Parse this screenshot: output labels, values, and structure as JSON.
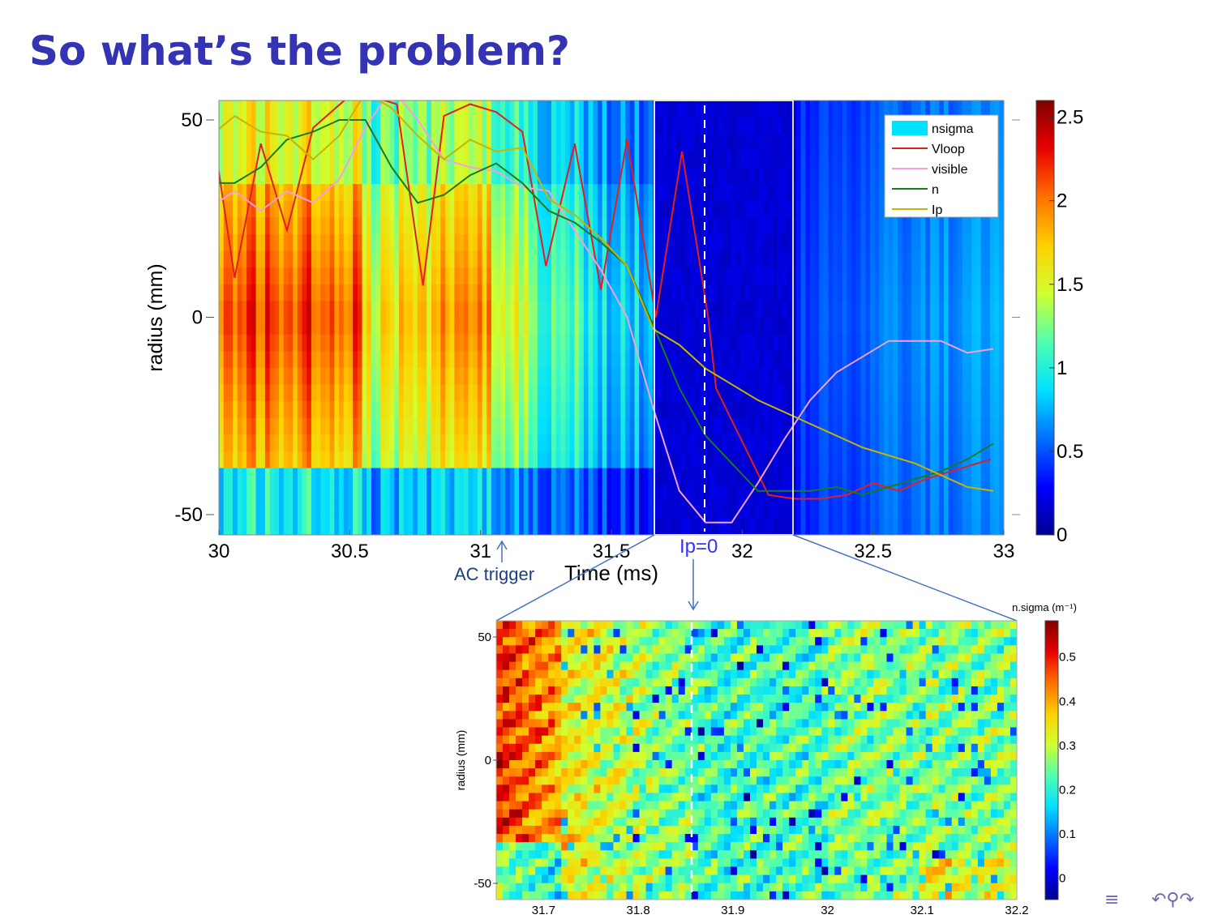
{
  "slide": {
    "title": "So what’s the problem?",
    "nav_icons": [
      "section-nav-icon",
      "undo-redo-search-icon"
    ]
  },
  "annotations": {
    "ac_trigger": "AC trigger",
    "ip_zero": "Ip=0"
  },
  "colormap": [
    "#00008f",
    "#0000ff",
    "#0070ff",
    "#00e0ff",
    "#50ffb0",
    "#d0ff30",
    "#ffd000",
    "#ff7000",
    "#e80000",
    "#800000"
  ],
  "chart_data": [
    {
      "type": "heatmap",
      "title": "",
      "xlabel": "Time (ms)",
      "ylabel": "radius (mm)",
      "xlim": [
        30,
        33
      ],
      "ylim": [
        -55,
        55
      ],
      "xticks": [
        "30",
        "30.5",
        "31",
        "31.5",
        "32",
        "32.5",
        "33"
      ],
      "yticks": [
        "50",
        "0",
        "-50"
      ],
      "colorbar": {
        "range": [
          0,
          2.6
        ],
        "ticks": [
          "2.5",
          "2",
          "1.5",
          "1",
          "0.5",
          "0"
        ]
      },
      "zoom_window": [
        31.66,
        32.2
      ],
      "ip_zero_time": 31.85,
      "legend": {
        "position": "top-right",
        "entries": [
          {
            "name": "nsigma",
            "color": "#00e0ff",
            "style": "patch"
          },
          {
            "name": "Vloop",
            "color": "#e02020",
            "style": "line"
          },
          {
            "name": "visible",
            "color": "#f4a0d8",
            "style": "line"
          },
          {
            "name": "n",
            "color": "#1a7a1a",
            "style": "line"
          },
          {
            "name": "Ip",
            "color": "#c8b400",
            "style": "line"
          }
        ]
      },
      "series": [
        {
          "name": "Vloop",
          "color": "#e02020",
          "points": [
            [
              29.97,
              50
            ],
            [
              30.06,
              10
            ],
            [
              30.16,
              44
            ],
            [
              30.26,
              22
            ],
            [
              30.36,
              48
            ],
            [
              30.48,
              55
            ],
            [
              30.58,
              56
            ],
            [
              30.68,
              54
            ],
            [
              30.78,
              8
            ],
            [
              30.86,
              51
            ],
            [
              30.96,
              54
            ],
            [
              31.06,
              52
            ],
            [
              31.16,
              47
            ],
            [
              31.25,
              13
            ],
            [
              31.36,
              44
            ],
            [
              31.46,
              7
            ],
            [
              31.56,
              45
            ],
            [
              31.67,
              0
            ],
            [
              31.77,
              42
            ],
            [
              31.87,
              0
            ],
            [
              31.9,
              -18
            ],
            [
              32.1,
              -45
            ],
            [
              32.2,
              -46
            ],
            [
              32.3,
              -46
            ],
            [
              32.4,
              -45
            ],
            [
              32.5,
              -42
            ],
            [
              32.6,
              -44
            ],
            [
              32.7,
              -41
            ],
            [
              32.85,
              -38
            ],
            [
              32.95,
              -36
            ]
          ]
        },
        {
          "name": "visible",
          "color": "#f4a0d8",
          "points": [
            [
              29.97,
              28
            ],
            [
              30.06,
              32
            ],
            [
              30.16,
              27
            ],
            [
              30.26,
              32
            ],
            [
              30.36,
              29
            ],
            [
              30.46,
              35
            ],
            [
              30.56,
              48
            ],
            [
              30.66,
              58
            ],
            [
              30.76,
              50
            ],
            [
              30.86,
              40
            ],
            [
              30.96,
              38
            ],
            [
              31.06,
              37
            ],
            [
              31.16,
              33
            ],
            [
              31.26,
              32
            ],
            [
              31.36,
              22
            ],
            [
              31.46,
              12
            ],
            [
              31.56,
              0
            ],
            [
              31.66,
              -23
            ],
            [
              31.76,
              -44
            ],
            [
              31.86,
              -52
            ],
            [
              31.96,
              -52
            ],
            [
              32.06,
              -42
            ],
            [
              32.16,
              -31
            ],
            [
              32.26,
              -21
            ],
            [
              32.36,
              -14
            ],
            [
              32.46,
              -10
            ],
            [
              32.56,
              -6
            ],
            [
              32.66,
              -6
            ],
            [
              32.76,
              -6
            ],
            [
              32.86,
              -9
            ],
            [
              32.96,
              -8
            ]
          ]
        },
        {
          "name": "n",
          "color": "#1a7a1a",
          "points": [
            [
              29.97,
              34
            ],
            [
              30.06,
              34
            ],
            [
              30.16,
              38
            ],
            [
              30.26,
              45
            ],
            [
              30.36,
              47
            ],
            [
              30.46,
              50
            ],
            [
              30.56,
              50
            ],
            [
              30.66,
              38
            ],
            [
              30.76,
              29
            ],
            [
              30.86,
              31
            ],
            [
              30.96,
              36
            ],
            [
              31.06,
              39
            ],
            [
              31.16,
              34
            ],
            [
              31.26,
              27
            ],
            [
              31.36,
              24
            ],
            [
              31.46,
              19
            ],
            [
              31.56,
              13
            ],
            [
              31.66,
              -2
            ],
            [
              31.76,
              -18
            ],
            [
              31.86,
              -30
            ],
            [
              31.96,
              -37
            ],
            [
              32.06,
              -44
            ],
            [
              32.16,
              -44
            ],
            [
              32.26,
              -44
            ],
            [
              32.36,
              -43
            ],
            [
              32.46,
              -45
            ],
            [
              32.56,
              -43
            ],
            [
              32.66,
              -41
            ],
            [
              32.76,
              -39
            ],
            [
              32.86,
              -36
            ],
            [
              32.96,
              -32
            ]
          ]
        },
        {
          "name": "Ip",
          "color": "#c8b400",
          "points": [
            [
              29.97,
              46
            ],
            [
              30.06,
              51
            ],
            [
              30.16,
              47
            ],
            [
              30.26,
              46
            ],
            [
              30.36,
              40
            ],
            [
              30.46,
              46
            ],
            [
              30.56,
              57
            ],
            [
              30.66,
              53
            ],
            [
              30.76,
              46
            ],
            [
              30.86,
              40
            ],
            [
              30.96,
              45
            ],
            [
              31.06,
              42
            ],
            [
              31.16,
              43
            ],
            [
              31.26,
              30
            ],
            [
              31.36,
              26
            ],
            [
              31.46,
              20
            ],
            [
              31.56,
              13
            ],
            [
              31.66,
              -3
            ],
            [
              31.76,
              -7
            ],
            [
              31.86,
              -13
            ],
            [
              31.96,
              -17
            ],
            [
              32.06,
              -21
            ],
            [
              32.16,
              -24
            ],
            [
              32.26,
              -27
            ],
            [
              32.36,
              -30
            ],
            [
              32.46,
              -33
            ],
            [
              32.56,
              -35
            ],
            [
              32.66,
              -37
            ],
            [
              32.76,
              -40
            ],
            [
              32.86,
              -43
            ],
            [
              32.96,
              -44
            ]
          ]
        }
      ]
    },
    {
      "type": "heatmap",
      "title": "",
      "xlabel": "",
      "ylabel": "radius (mm)",
      "xlim": [
        31.65,
        32.2
      ],
      "ylim": [
        -52,
        56
      ],
      "xticks": [
        "31.7",
        "31.8",
        "31.9",
        "32",
        "32.1",
        "32.2"
      ],
      "yticks": [
        "50",
        "0",
        "-50"
      ],
      "colorbar": {
        "label": "n.sigma (m⁻¹)",
        "range": [
          -0.05,
          0.58
        ],
        "ticks": [
          "0.5",
          "0.4",
          "0.3",
          "0.2",
          "0.1",
          "0"
        ]
      },
      "ip_zero_time": 31.85
    }
  ]
}
